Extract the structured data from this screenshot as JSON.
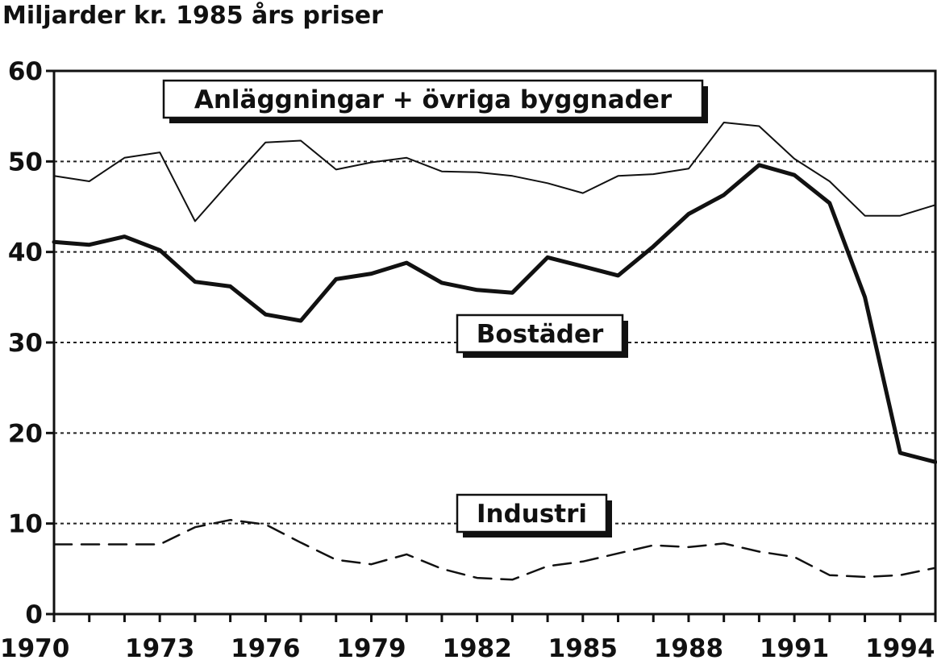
{
  "chart_data": {
    "type": "line",
    "title": "Miljarder kr. 1985 års priser",
    "xlabel": "",
    "ylabel": "",
    "ylim": [
      0,
      60
    ],
    "xlim": [
      1970,
      1995
    ],
    "yticks": [
      0,
      10,
      20,
      30,
      40,
      50,
      60
    ],
    "xtick_labels": [
      "1970",
      "1973",
      "1976",
      "1979",
      "1982",
      "1985",
      "1988",
      "1991",
      "1994"
    ],
    "grid": "horizontal dotted",
    "x": [
      1970,
      1971,
      1972,
      1973,
      1974,
      1975,
      1976,
      1977,
      1978,
      1979,
      1980,
      1981,
      1982,
      1983,
      1984,
      1985,
      1986,
      1987,
      1988,
      1989,
      1990,
      1991,
      1992,
      1993,
      1994,
      1995
    ],
    "series": [
      {
        "name": "Anläggningar + övriga byggnader",
        "style": "thin solid",
        "values": [
          48.4,
          47.8,
          50.4,
          51.0,
          43.4,
          47.8,
          52.1,
          52.3,
          49.1,
          49.9,
          50.4,
          48.9,
          48.8,
          48.4,
          47.6,
          46.5,
          48.4,
          48.6,
          49.2,
          54.3,
          53.9,
          50.3,
          47.8,
          44.0,
          44.0,
          45.2
        ]
      },
      {
        "name": "Bostäder",
        "style": "thick solid",
        "values": [
          41.1,
          40.8,
          41.7,
          40.2,
          36.7,
          36.2,
          33.1,
          32.4,
          37.0,
          37.6,
          38.8,
          36.6,
          35.8,
          35.5,
          39.4,
          38.4,
          37.4,
          40.6,
          44.2,
          46.3,
          49.6,
          48.5,
          45.4,
          35.0,
          17.8,
          16.8
        ]
      },
      {
        "name": "Industri",
        "style": "dashed",
        "values": [
          7.7,
          7.7,
          7.7,
          7.7,
          9.6,
          10.4,
          9.9,
          7.9,
          6.0,
          5.5,
          6.6,
          5.0,
          4.0,
          3.8,
          5.3,
          5.8,
          6.7,
          7.6,
          7.4,
          7.8,
          6.9,
          6.3,
          4.3,
          4.1,
          4.3,
          5.1
        ]
      }
    ],
    "colors": {
      "ink": "#111111",
      "grid": "#222222",
      "background": "#ffffff"
    }
  }
}
